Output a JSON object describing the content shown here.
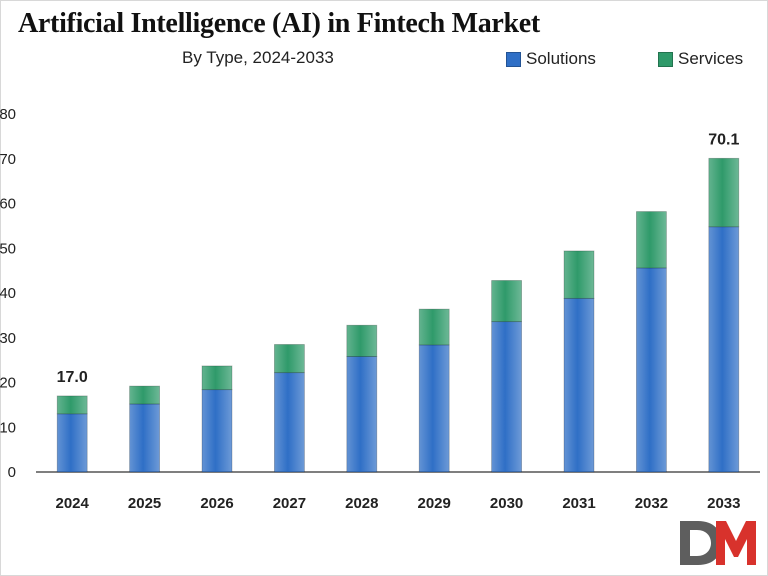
{
  "colors": {
    "solutions": "#2f6fc6",
    "services": "#2f9a6a",
    "axis": "#333333",
    "logo_d": "#5e5e5e",
    "logo_m": "#d8322c"
  },
  "chart_data": {
    "type": "bar",
    "stacked": true,
    "title": "Artificial Intelligence (AI) in Fintech Market",
    "subtitle": "By Type, 2024-2033",
    "xlabel": "",
    "ylabel": "",
    "ylim": [
      0,
      80
    ],
    "yticks": [
      0,
      10,
      20,
      30,
      40,
      50,
      60,
      70,
      80
    ],
    "ytick_labels": [
      "0",
      "10",
      "20",
      "30",
      "40",
      "50",
      "60",
      "70",
      "80"
    ],
    "grid": false,
    "legend_position": "top-right",
    "categories": [
      "2024",
      "2025",
      "2026",
      "2027",
      "2028",
      "2029",
      "2030",
      "2031",
      "2032",
      "2033"
    ],
    "series": [
      {
        "name": "Solutions",
        "values": [
          13.0,
          15.2,
          18.4,
          22.2,
          25.8,
          28.4,
          33.6,
          38.8,
          45.6,
          54.8
        ]
      },
      {
        "name": "Services",
        "values": [
          4.0,
          4.0,
          5.3,
          6.3,
          7.0,
          8.0,
          9.2,
          10.6,
          12.6,
          15.3
        ]
      }
    ],
    "data_labels": [
      {
        "category": "2024",
        "text": "17.0"
      },
      {
        "category": "2033",
        "text": "70.1"
      }
    ]
  },
  "logo": {
    "text": "DM"
  }
}
